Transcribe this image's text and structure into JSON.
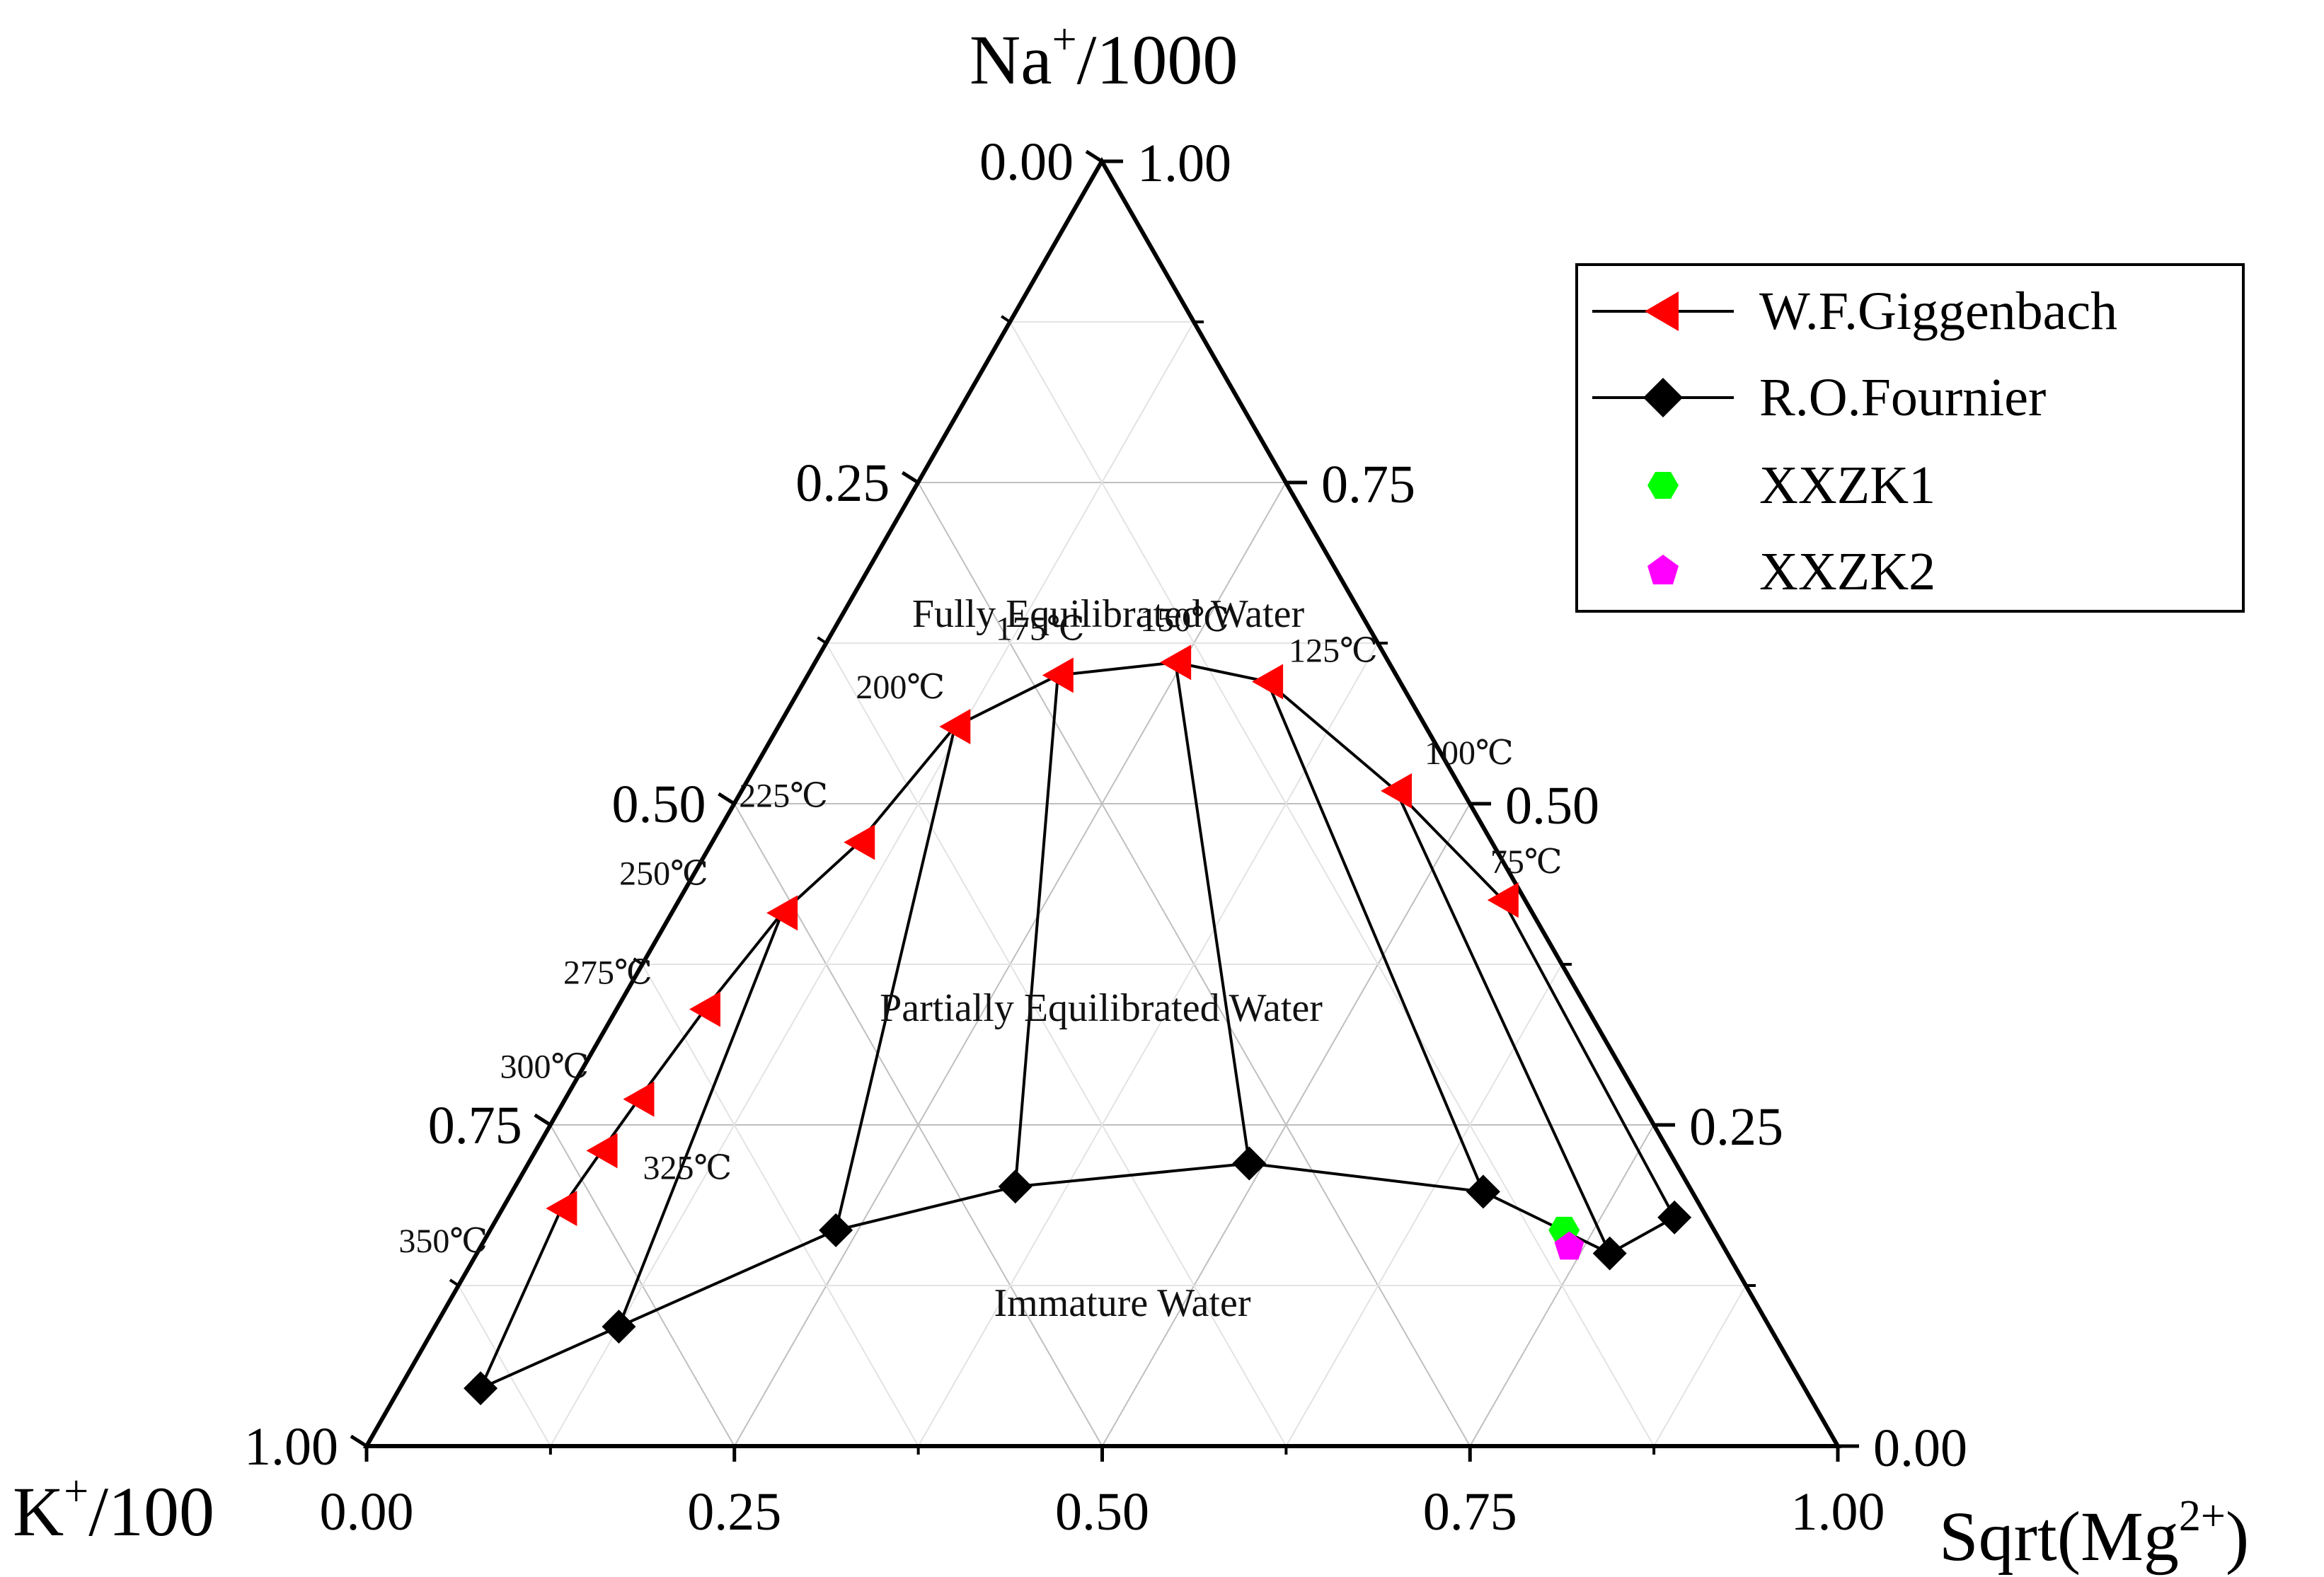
{
  "chart_data": {
    "type": "ternary",
    "axes": {
      "top": {
        "title_main": "Na",
        "title_sup": "+",
        "title_rest": "/1000"
      },
      "left": {
        "title_main": "K",
        "title_sup": "+",
        "title_rest": "/100"
      },
      "right": {
        "title_main": "Sqrt(Mg",
        "title_sup": "2+",
        "title_rest": ")"
      }
    },
    "ticks": {
      "bottom": [
        "0.00",
        "0.25",
        "0.50",
        "0.75",
        "1.00"
      ],
      "left": [
        "0.00",
        "0.25",
        "0.50",
        "0.75",
        "1.00"
      ],
      "right": [
        "1.00",
        "0.75",
        "0.50",
        "0.25",
        "0.00"
      ]
    },
    "grid": true,
    "regions": [
      "Fully Equilibrated Water",
      "Partially Equilibrated Water",
      "Immature Water"
    ],
    "legend_position": "top-right",
    "series": [
      {
        "name": "W.F.Giggenbach",
        "marker": "left-triangle",
        "color": "#ff0000",
        "line_color": "#000000",
        "points": [
          {
            "label": "75℃",
            "na": 0.425,
            "mg": 0.56
          },
          {
            "label": "100℃",
            "na": 0.51,
            "mg": 0.445
          },
          {
            "label": "125℃",
            "na": 0.595,
            "mg": 0.315
          },
          {
            "label": "150℃",
            "na": 0.61,
            "mg": 0.245
          },
          {
            "label": "175℃",
            "na": 0.6,
            "mg": 0.17
          },
          {
            "label": "200℃",
            "na": 0.56,
            "mg": 0.12
          },
          {
            "label": "225℃",
            "na": 0.47,
            "mg": 0.1
          },
          {
            "label": "250℃",
            "na": 0.415,
            "mg": 0.075
          },
          {
            "label": "275℃",
            "na": 0.34,
            "mg": 0.06
          },
          {
            "label": "300℃",
            "na": 0.27,
            "mg": 0.05
          },
          {
            "label": "325℃",
            "na": 0.23,
            "mg": 0.045
          },
          {
            "label": "350℃",
            "na": 0.185,
            "mg": 0.04
          }
        ]
      },
      {
        "name": "R.O.Fournier",
        "marker": "diamond",
        "color": "#000000",
        "points": [
          {
            "na": 0.178,
            "mg": 0.8
          },
          {
            "na": 0.15,
            "mg": 0.77
          },
          {
            "na": 0.198,
            "mg": 0.66
          },
          {
            "na": 0.22,
            "mg": 0.49
          },
          {
            "na": 0.202,
            "mg": 0.34
          },
          {
            "na": 0.168,
            "mg": 0.235
          },
          {
            "na": 0.093,
            "mg": 0.125
          },
          {
            "na": 0.045,
            "mg": 0.055
          }
        ]
      },
      {
        "name": "XXZK1",
        "marker": "hexagon",
        "color": "#00ff00",
        "points": [
          {
            "na": 0.168,
            "mg": 0.73
          }
        ]
      },
      {
        "name": "XXZK2",
        "marker": "pentagon",
        "color": "#ff00ff",
        "points": [
          {
            "na": 0.155,
            "mg": 0.74
          }
        ]
      }
    ],
    "connectors": [
      [
        0,
        0
      ],
      [
        1,
        1
      ],
      [
        2,
        2
      ],
      [
        3,
        3
      ],
      [
        4,
        4
      ],
      [
        5,
        5
      ],
      [
        7,
        6
      ],
      [
        11,
        7
      ]
    ]
  },
  "colors": {
    "giggenbach": "#ff0000",
    "fournier": "#000000",
    "xxzk1": "#00ff00",
    "xxzk2": "#ff00ff",
    "grid": "#bfbfbf"
  }
}
